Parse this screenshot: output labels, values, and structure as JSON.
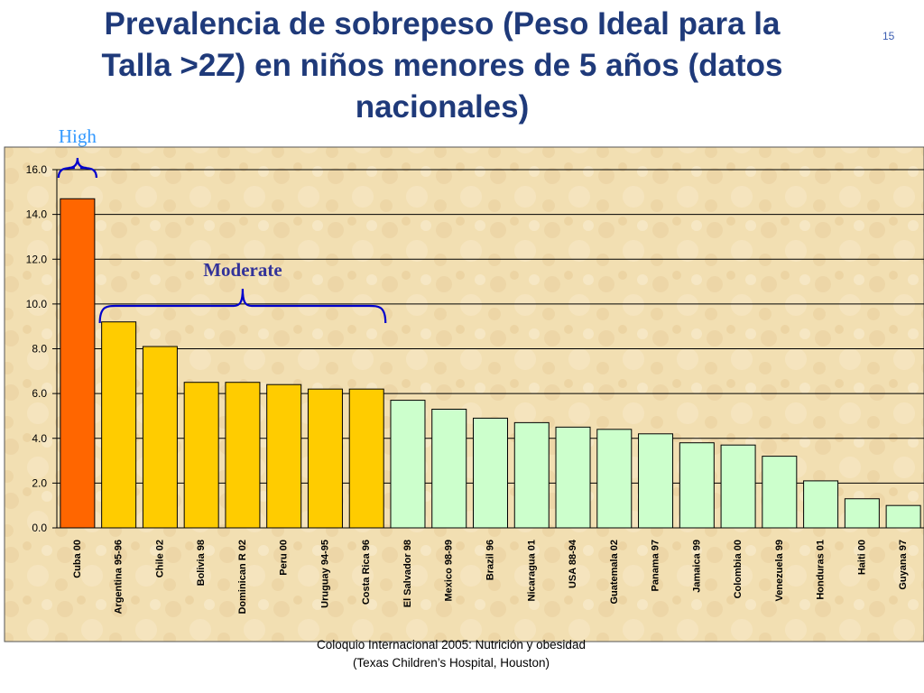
{
  "slide": {
    "title_line1": "Prevalencia de sobrepeso (Peso Ideal para la",
    "title_line2": "Talla >2Z) en niños menores de 5 años (datos",
    "title_line3": "nacionales)",
    "number": "15",
    "footer_line1": "Coloquio Internacional 2005: Nutrición y obesidad",
    "footer_line2": "(Texas Children’s Hospital, Houston)"
  },
  "chart_data": {
    "type": "bar",
    "title": "Prevalencia de sobrepeso (Peso Ideal para la Talla >2Z) en niños menores de 5 años (datos nacionales)",
    "xlabel": "",
    "ylabel": "",
    "ylim": [
      0,
      16
    ],
    "yticks": [
      "0.0",
      "2.0",
      "4.0",
      "6.0",
      "8.0",
      "10.0",
      "12.0",
      "14.0",
      "16.0"
    ],
    "grid": true,
    "categories": [
      "Cuba 00",
      "Argentina 95-96",
      "Chile 02",
      "Bolivia 98",
      "Dominican R 02",
      "Peru 00",
      "Uruguay 94-95",
      "Costa Rica 96",
      "El Salvador 98",
      "Mexico 98-99",
      "Brazil 96",
      "Nicaragua 01",
      "USA 88-94",
      "Guatemala 02",
      "Panama 97",
      "Jamaica 99",
      "Colombia 00",
      "Venezuela 99",
      "Honduras 01",
      "Haiti 00",
      "Guyana 97"
    ],
    "values": [
      14.7,
      9.2,
      8.1,
      6.5,
      6.5,
      6.4,
      6.2,
      6.2,
      5.7,
      5.3,
      4.9,
      4.7,
      4.5,
      4.4,
      4.2,
      3.8,
      3.7,
      3.2,
      2.1,
      1.3,
      1.0
    ],
    "groups": [
      "high",
      "moderate",
      "moderate",
      "moderate",
      "moderate",
      "moderate",
      "moderate",
      "moderate",
      "low",
      "low",
      "low",
      "low",
      "low",
      "low",
      "low",
      "low",
      "low",
      "low",
      "low",
      "low",
      "low"
    ],
    "colors": {
      "high": "#ff6600",
      "moderate": "#ffcc00",
      "low": "#ccffcc",
      "bar_stroke": "#000000",
      "grid": "#000000",
      "plot_bg": "#f2dfb2",
      "brace": "#0000cc",
      "high_text": "#3399ff",
      "moderate_text": "#333399"
    },
    "annotations": [
      {
        "label": "High",
        "from": 0,
        "to": 0
      },
      {
        "label": "Moderate",
        "from": 1,
        "to": 7
      }
    ]
  }
}
